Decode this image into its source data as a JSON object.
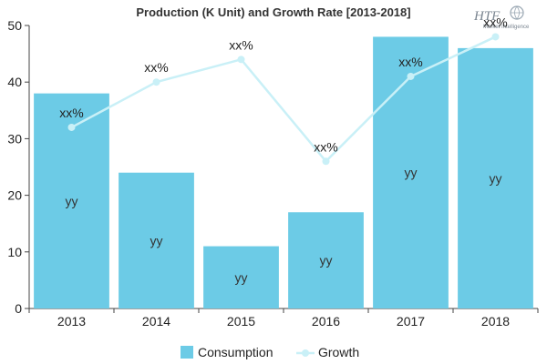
{
  "chart_data": {
    "type": "bar",
    "title": "Production (K Unit) and Growth Rate [2013-2018]",
    "categories": [
      "2013",
      "2014",
      "2015",
      "2016",
      "2017",
      "2018"
    ],
    "ylim": [
      0,
      50
    ],
    "yticks": [
      0,
      10,
      20,
      30,
      40,
      50
    ],
    "grid": false,
    "legend_position": "bottom",
    "series": [
      {
        "name": "Consumption",
        "type": "bar",
        "color": "#6ccbe6",
        "values": [
          38,
          24,
          11,
          17,
          48,
          46
        ],
        "labels": [
          "yy",
          "yy",
          "yy",
          "yy",
          "yy",
          "yy"
        ]
      },
      {
        "name": "Growth",
        "type": "line",
        "color": "#c9f0f7",
        "values": [
          32,
          40,
          44,
          26,
          41,
          48
        ],
        "labels": [
          "xx%",
          "xx%",
          "xx%",
          "xx%",
          "xx%",
          "xx%"
        ]
      }
    ]
  },
  "logo": {
    "name": "HTF",
    "tagline": "Market Intelligence"
  }
}
